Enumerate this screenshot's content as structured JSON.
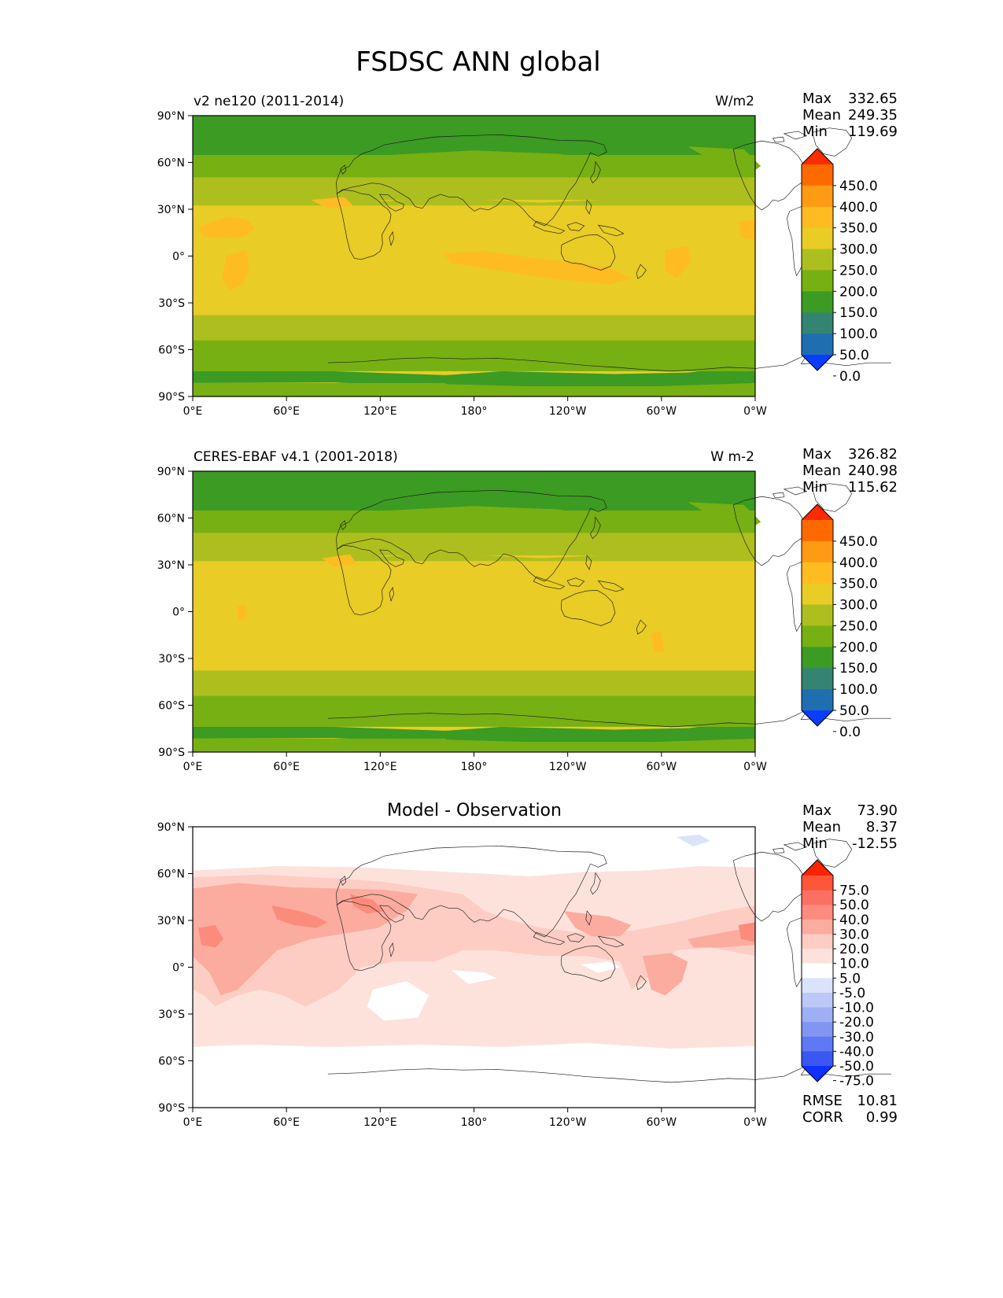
{
  "figure": {
    "title": "FSDSC ANN global"
  },
  "lat_ticks": [
    "90°N",
    "60°N",
    "30°N",
    "0°",
    "30°S",
    "60°S",
    "90°S"
  ],
  "lon_ticks": [
    "0°E",
    "60°E",
    "120°E",
    "180°",
    "120°W",
    "60°W",
    "0°W"
  ],
  "panels": [
    {
      "left_title": "v2 ne120 (2011-2014)",
      "right_title": "W/m2",
      "center_title": "",
      "stats": {
        "max": "332.65",
        "mean": "249.35",
        "min": "119.69"
      },
      "stat_labels": {
        "max": "Max",
        "mean": "Mean",
        "min": "Min"
      },
      "colorbar": {
        "labels": [
          "450.0",
          "400.0",
          "350.0",
          "300.0",
          "250.0",
          "200.0",
          "150.0",
          "100.0",
          "50.0",
          "0.0"
        ],
        "colors": [
          "#ff2a00",
          "#ff6a00",
          "#ff9a14",
          "#ffbb22",
          "#e9cc25",
          "#adbf1e",
          "#77b012",
          "#3b9b23",
          "#348472",
          "#1f6fb0",
          "#0a3dff"
        ]
      }
    },
    {
      "left_title": "CERES-EBAF v4.1 (2001-2018)",
      "right_title": "W m-2",
      "center_title": "",
      "stats": {
        "max": "326.82",
        "mean": "240.98",
        "min": "115.62"
      },
      "stat_labels": {
        "max": "Max",
        "mean": "Mean",
        "min": "Min"
      },
      "colorbar": {
        "labels": [
          "450.0",
          "400.0",
          "350.0",
          "300.0",
          "250.0",
          "200.0",
          "150.0",
          "100.0",
          "50.0",
          "0.0"
        ],
        "colors": [
          "#ff2a00",
          "#ff6a00",
          "#ff9a14",
          "#ffbb22",
          "#e9cc25",
          "#adbf1e",
          "#77b012",
          "#3b9b23",
          "#348472",
          "#1f6fb0",
          "#0a3dff"
        ]
      }
    },
    {
      "left_title": "",
      "right_title": "",
      "center_title": "Model - Observation",
      "stats": {
        "max": "73.90",
        "mean": "8.37",
        "min": "-12.55"
      },
      "stat_labels": {
        "max": "Max",
        "mean": "Mean",
        "min": "Min"
      },
      "colorbar": {
        "labels": [
          "75.0",
          "50.0",
          "40.0",
          "30.0",
          "20.0",
          "10.0",
          "5.0",
          "-5.0",
          "-10.0",
          "-20.0",
          "-30.0",
          "-40.0",
          "-50.0",
          "-75.0"
        ],
        "colors": [
          "#ff2200",
          "#ff5539",
          "#fb7060",
          "#fd8c7e",
          "#fcab9f",
          "#fdcdc4",
          "#fde2dc",
          "#ffffff",
          "#dbe3fb",
          "#bcc8f7",
          "#9eaff4",
          "#8195f3",
          "#5f78f3",
          "#3a57f3",
          "#1030ff"
        ]
      },
      "metrics": {
        "rmse_label": "RMSE",
        "rmse": "10.81",
        "corr_label": "CORR",
        "corr": "0.99"
      }
    }
  ],
  "colors": {
    "base_yellow": "#e9cc25",
    "orange": "#ffbb22",
    "yellow_green": "#adbf1e",
    "green": "#77b012",
    "dark_green": "#3b9b23",
    "diff_light": "#fde2dc",
    "diff_mid": "#fdcdc4",
    "diff_strong": "#fcab9f",
    "diff_red": "#fb8c7c",
    "diff_blue": "#dbe3fb"
  }
}
